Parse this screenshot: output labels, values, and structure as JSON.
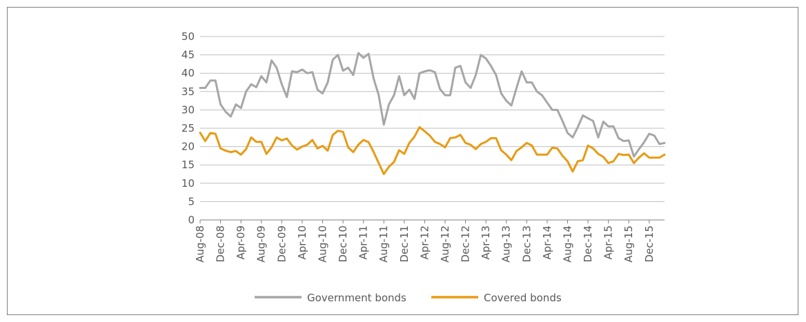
{
  "chart_data": {
    "type": "line",
    "x_tick_labels": [
      "Aug-08",
      "Dec-08",
      "Apr-09",
      "Aug-09",
      "Dec-09",
      "Apr-10",
      "Aug-10",
      "Dec-10",
      "Apr-11",
      "Aug-11",
      "Dec-11",
      "Apr-12",
      "Aug-12",
      "Dec-12",
      "Apr-13",
      "Aug-13",
      "Dec-13",
      "Apr-14",
      "Aug-14",
      "Dec-14",
      "Apr-15",
      "Aug-15",
      "Dec-15"
    ],
    "x_start": "Aug-08",
    "x_end": "Jun-16",
    "y_ticks": [
      "0",
      "5",
      "10",
      "15",
      "20",
      "25",
      "30",
      "35",
      "40",
      "45",
      "50"
    ],
    "ylim": [
      0,
      50
    ],
    "grid": "horizontal",
    "legend_position": "bottom",
    "series": [
      {
        "name": "Government bonds",
        "color": "#a6a6a6",
        "values": [
          36,
          36,
          38,
          38,
          31.5,
          29.5,
          28.2,
          31.5,
          30.5,
          35,
          37,
          36.2,
          39.2,
          37.5,
          43.5,
          41.5,
          37,
          33.5,
          40.5,
          40.3,
          41,
          40,
          40.3,
          35.5,
          34.5,
          37.5,
          43.7,
          45,
          40.7,
          41.5,
          39.5,
          45.5,
          44.2,
          45.3,
          38.5,
          34,
          26,
          31.5,
          34,
          39.2,
          34,
          35.5,
          33,
          40,
          40.5,
          40.8,
          40.3,
          35.7,
          34,
          34,
          41.5,
          42,
          37.5,
          36,
          39.5,
          45,
          44,
          42,
          39.5,
          34.5,
          32.5,
          31.2,
          36,
          40.5,
          37.5,
          37.5,
          35,
          34,
          32,
          30,
          30,
          27,
          23.7,
          22.5,
          25.3,
          28.5,
          27.7,
          27,
          22.5,
          26.8,
          25.5,
          25.5,
          22.3,
          21.5,
          21.7,
          17.3,
          19.3,
          21.2,
          23.5,
          23,
          20.7,
          21
        ]
      },
      {
        "name": "Covered bonds",
        "color": "#e89b14",
        "values": [
          23.8,
          21.5,
          23.7,
          23.5,
          19.5,
          18.9,
          18.5,
          18.8,
          17.8,
          19.3,
          22.5,
          21.3,
          21.3,
          18,
          19.8,
          22.5,
          21.7,
          22.2,
          20.3,
          19.2,
          20,
          20.5,
          21.8,
          19.5,
          20.2,
          18.9,
          23.2,
          24.3,
          24,
          19.8,
          18.5,
          20.5,
          21.8,
          21.2,
          18.5,
          15.5,
          12.5,
          14.5,
          15.8,
          19,
          18,
          21,
          22.7,
          25.3,
          24.2,
          23,
          21.3,
          20.7,
          19.8,
          22.3,
          22.5,
          23.2,
          21,
          20.5,
          19.3,
          20.7,
          21.3,
          22.3,
          22.3,
          19,
          17.8,
          16.3,
          18.8,
          19.8,
          21,
          20.3,
          17.8,
          17.8,
          17.8,
          19.7,
          19.5,
          17.5,
          16,
          13.2,
          16,
          16.3,
          20.3,
          19.5,
          18,
          17.2,
          15.5,
          16,
          18,
          17.7,
          17.8,
          15.5,
          17,
          18.2,
          17,
          17,
          17,
          17.8
        ]
      }
    ]
  }
}
